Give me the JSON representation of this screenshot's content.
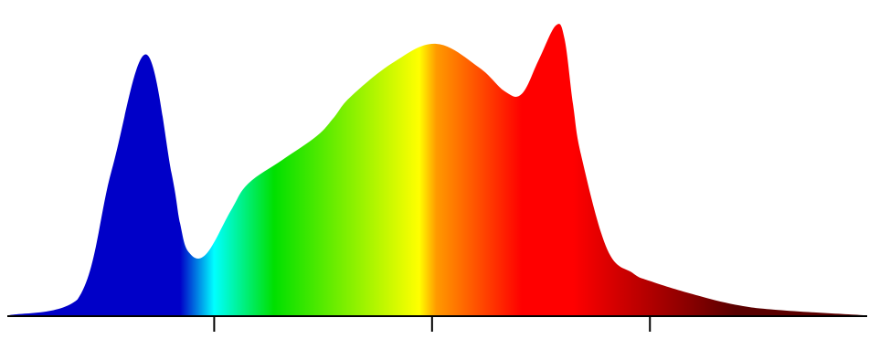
{
  "chart_data": {
    "type": "area",
    "title": "",
    "xlabel": "",
    "ylabel": "",
    "x": [
      0,
      8,
      12,
      16,
      19,
      20,
      21,
      23,
      26,
      28,
      32,
      36,
      38,
      40,
      45,
      50,
      55,
      58,
      60,
      62,
      64,
      65,
      66,
      67,
      70,
      73,
      75,
      80,
      85,
      90,
      100
    ],
    "values": [
      0.0,
      0.06,
      0.55,
      0.99,
      0.54,
      0.35,
      0.24,
      0.23,
      0.4,
      0.5,
      0.59,
      0.68,
      0.75,
      0.83,
      0.96,
      1.03,
      0.94,
      0.85,
      0.84,
      0.97,
      1.1,
      1.05,
      0.8,
      0.6,
      0.25,
      0.16,
      0.13,
      0.08,
      0.04,
      0.02,
      0.0
    ],
    "ylim": [
      0,
      1.12
    ],
    "x_ticks": [
      24,
      49.5,
      75
    ],
    "grid": false,
    "legend": "none",
    "fill": "visible-spectrum-gradient",
    "colors": {
      "blue": "#0000c8",
      "cyan": "#00ffff",
      "green": "#00e000",
      "yellow": "#ffff00",
      "orange": "#ff9a00",
      "red": "#ff0000",
      "dark_red": "#5a0000",
      "axis": "#000000"
    }
  }
}
